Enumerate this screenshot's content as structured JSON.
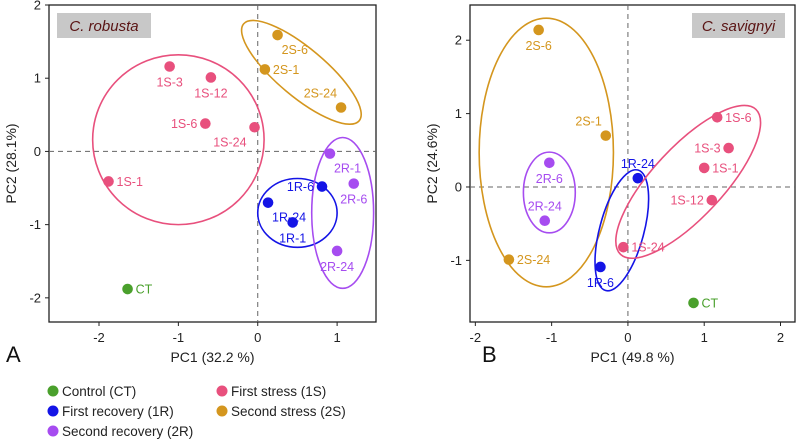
{
  "colors": {
    "CT": "#4aa02c",
    "1S": "#e8507d",
    "1R": "#1414e6",
    "2S": "#d4961e",
    "2R": "#a64cf0"
  },
  "legend": [
    {
      "group": "CT",
      "label": "Control (CT)"
    },
    {
      "group": "1S",
      "label": "First stress (1S)"
    },
    {
      "group": "1R",
      "label": "First recovery (1R)"
    },
    {
      "group": "2S",
      "label": "Second stress (2S)"
    },
    {
      "group": "2R",
      "label": "Second recovery (2R)"
    }
  ],
  "chart_data": [
    {
      "type": "scatter",
      "panel": "A",
      "title": "C. robusta",
      "xlabel": "PC1 (32.2 %)",
      "ylabel": "PC2 (28.1%)",
      "xlim": [
        -2.63,
        1.49
      ],
      "ylim": [
        -2.33,
        2.0
      ],
      "xticks": [
        -2,
        -1,
        0,
        1
      ],
      "yticks": [
        -2,
        -1,
        0,
        1,
        2
      ],
      "points": [
        {
          "label": "1S-3",
          "group": "1S",
          "x": -1.11,
          "y": 1.16,
          "label_pos": "below"
        },
        {
          "label": "1S-12",
          "group": "1S",
          "x": -0.59,
          "y": 1.01,
          "label_pos": "below"
        },
        {
          "label": "1S-6",
          "group": "1S",
          "x": -0.66,
          "y": 0.38,
          "label_pos": "left"
        },
        {
          "label": "1S-24",
          "group": "1S",
          "x": -0.04,
          "y": 0.33,
          "label_pos": "below-left"
        },
        {
          "label": "1S-1",
          "group": "1S",
          "x": -1.88,
          "y": -0.41,
          "label_pos": "right"
        },
        {
          "label": "2S-6",
          "group": "2S",
          "x": 0.25,
          "y": 1.59,
          "label_pos": "below-right"
        },
        {
          "label": "2S-1",
          "group": "2S",
          "x": 0.09,
          "y": 1.12,
          "label_pos": "right"
        },
        {
          "label": "2S-24",
          "group": "2S",
          "x": 1.05,
          "y": 0.6,
          "label_pos": "above-left"
        },
        {
          "label": "2R-1",
          "group": "2R",
          "x": 0.91,
          "y": -0.03,
          "label_pos": "below-right"
        },
        {
          "label": "2R-6",
          "group": "2R",
          "x": 1.21,
          "y": -0.44,
          "label_pos": "below"
        },
        {
          "label": "2R-24",
          "group": "2R",
          "x": 1.0,
          "y": -1.36,
          "label_pos": "below"
        },
        {
          "label": "1R-6",
          "group": "1R",
          "x": 0.81,
          "y": -0.48,
          "label_pos": "left"
        },
        {
          "label": "1R-24",
          "group": "1R",
          "x": 0.13,
          "y": -0.7,
          "label_pos": "below-right"
        },
        {
          "label": "1R-1",
          "group": "1R",
          "x": 0.44,
          "y": -0.97,
          "label_pos": "below"
        },
        {
          "label": "CT",
          "group": "CT",
          "x": -1.64,
          "y": -1.88,
          "label_pos": "right"
        }
      ],
      "ellipses": [
        {
          "group": "1S",
          "cx": -1.0,
          "cy": 0.16,
          "rx": 1.08,
          "ry": 1.16,
          "angle": 0
        },
        {
          "group": "2S",
          "cx": 0.55,
          "cy": 1.08,
          "rx": 0.95,
          "ry": 0.33,
          "angle": 40
        },
        {
          "group": "1R",
          "cx": 0.5,
          "cy": -0.84,
          "rx": 0.5,
          "ry": 0.47,
          "angle": 0
        },
        {
          "group": "2R",
          "cx": 1.07,
          "cy": -0.84,
          "rx": 0.39,
          "ry": 1.03,
          "angle": 0
        }
      ]
    },
    {
      "type": "scatter",
      "panel": "B",
      "title": "C. savignyi",
      "xlabel": "PC1 (49.8 %)",
      "ylabel": "PC2 (24.6%)",
      "xlim": [
        -2.07,
        2.19
      ],
      "ylim": [
        -1.84,
        2.48
      ],
      "xticks": [
        -2,
        -1,
        0,
        1,
        2
      ],
      "yticks": [
        -1,
        0,
        1,
        2
      ],
      "points": [
        {
          "label": "2S-6",
          "group": "2S",
          "x": -1.17,
          "y": 2.14,
          "label_pos": "below"
        },
        {
          "label": "2S-1",
          "group": "2S",
          "x": -0.29,
          "y": 0.7,
          "label_pos": "above-left"
        },
        {
          "label": "2S-24",
          "group": "2S",
          "x": -1.56,
          "y": -0.99,
          "label_pos": "right"
        },
        {
          "label": "2R-6",
          "group": "2R",
          "x": -1.03,
          "y": 0.33,
          "label_pos": "below"
        },
        {
          "label": "2R-24",
          "group": "2R",
          "x": -1.09,
          "y": -0.46,
          "label_pos": "above"
        },
        {
          "label": "1R-24",
          "group": "1R",
          "x": 0.13,
          "y": 0.12,
          "label_pos": "above"
        },
        {
          "label": "1R-6",
          "group": "1R",
          "x": -0.36,
          "y": -1.09,
          "label_pos": "below"
        },
        {
          "label": "1S-6",
          "group": "1S",
          "x": 1.17,
          "y": 0.95,
          "label_pos": "right"
        },
        {
          "label": "1S-3",
          "group": "1S",
          "x": 1.32,
          "y": 0.53,
          "label_pos": "left"
        },
        {
          "label": "1S-1",
          "group": "1S",
          "x": 1.0,
          "y": 0.26,
          "label_pos": "right"
        },
        {
          "label": "1S-12",
          "group": "1S",
          "x": 1.1,
          "y": -0.18,
          "label_pos": "left"
        },
        {
          "label": "1S-24",
          "group": "1S",
          "x": -0.06,
          "y": -0.82,
          "label_pos": "right"
        },
        {
          "label": "CT",
          "group": "CT",
          "x": 0.86,
          "y": -1.58,
          "label_pos": "right"
        }
      ],
      "ellipses": [
        {
          "group": "2S",
          "cx": -1.07,
          "cy": 0.47,
          "rx": 0.88,
          "ry": 1.83,
          "angle": 0
        },
        {
          "group": "2R",
          "cx": -1.03,
          "cy": -0.075,
          "rx": 0.34,
          "ry": 0.55,
          "angle": 0
        },
        {
          "group": "1R",
          "cx": -0.08,
          "cy": -0.59,
          "rx": 0.29,
          "ry": 0.85,
          "angle": 15
        },
        {
          "group": "1S",
          "cx": 0.79,
          "cy": 0.07,
          "rx": 1.3,
          "ry": 0.48,
          "angle": -47
        }
      ]
    }
  ]
}
